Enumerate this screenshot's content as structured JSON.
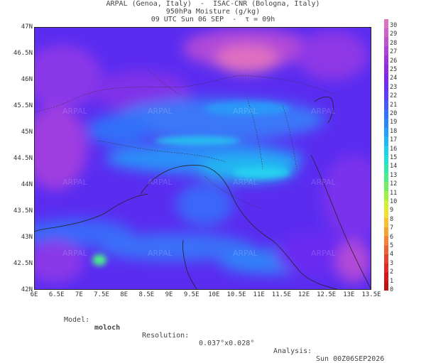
{
  "header": {
    "line1": "ARPAL (Genoa, Italy)  -  ISAC-CNR (Bologna, Italy)",
    "line2": "950hPa Moisture (g/kg)",
    "line3": "09 UTC Sun 06 SEP  -  τ = 09h"
  },
  "map": {
    "lat_labels": [
      "47N",
      "46.5N",
      "46N",
      "45.5N",
      "45N",
      "44.5N",
      "44N",
      "43.5N",
      "43N",
      "42.5N",
      "42N"
    ],
    "lon_labels": [
      "6E",
      "6.5E",
      "7E",
      "7.5E",
      "8E",
      "8.5E",
      "9E",
      "9.5E",
      "10E",
      "10.5E",
      "11E",
      "11.5E",
      "12E",
      "12.5E",
      "13E",
      "13.5E"
    ],
    "watermark": "ARPAL"
  },
  "colorbar": {
    "ticks": [
      "30",
      "29",
      "28",
      "27",
      "26",
      "25",
      "24",
      "23",
      "22",
      "21",
      "20",
      "19",
      "18",
      "17",
      "16",
      "15",
      "14",
      "13",
      "12",
      "11",
      "10",
      "9",
      "8",
      "7",
      "6",
      "5",
      "4",
      "3",
      "2",
      "1",
      "0"
    ],
    "colors": [
      "#e070c0",
      "#d060c8",
      "#c050d0",
      "#b040d8",
      "#a030e0",
      "#9028e8",
      "#7a28f0",
      "#6830f8",
      "#5840ff",
      "#4858ff",
      "#3870ff",
      "#2888ff",
      "#20a0ff",
      "#20b8f8",
      "#20d0f0",
      "#20e0d8",
      "#30e8b0",
      "#48f088",
      "#70f060",
      "#a0f040",
      "#d0f030",
      "#f0e030",
      "#f8c030",
      "#f8a030",
      "#f88030",
      "#f06030",
      "#e84030",
      "#e02828",
      "#d01818",
      "#c01010"
    ]
  },
  "footer": {
    "model_label": "Model:",
    "model_value": "moloch",
    "resolution_label": "Resolution:",
    "resolution_value": "0.037°x0.028°",
    "analysis_label": "Analysis:",
    "analysis_value": "Sun 00Z06SEP2026"
  }
}
